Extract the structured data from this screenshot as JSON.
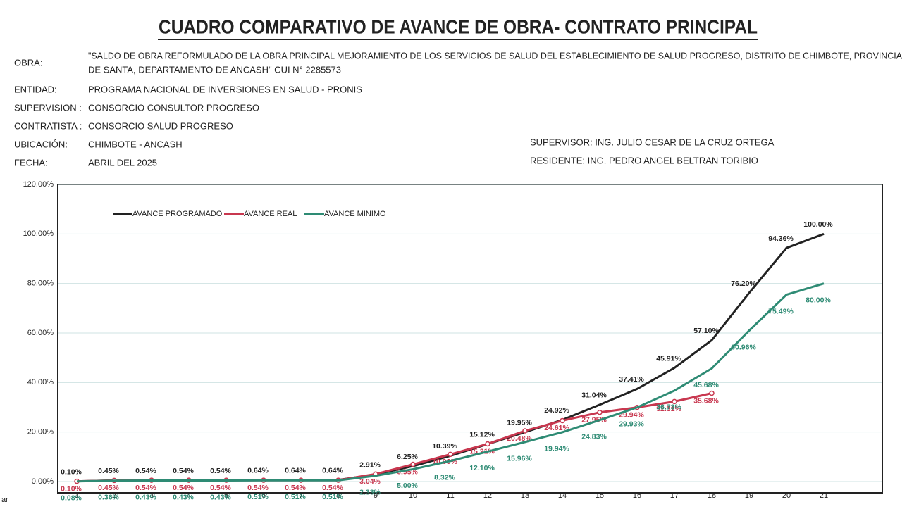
{
  "header": {
    "title": "CUADRO COMPARATIVO DE AVANCE DE OBRA- CONTRATO PRINCIPAL",
    "fields": [
      {
        "label": "OBRA:",
        "value": [
          "\"SALDO DE OBRA REFORMULADO DE LA OBRA PRINCIPAL MEJORAMIENTO DE LOS SERVICIOS DE SALUD DEL ESTABLECIMIENTO DE SALUD PROGRESO, DISTRITO DE CHIMBOTE, PROVINCIA",
          "DE SANTA, DEPARTAMENTO DE ANCASH\" CUI N° 2285573"
        ]
      },
      {
        "label": "ENTIDAD:",
        "value": [
          "PROGRAMA NACIONAL DE INVERSIONES EN SALUD - PRONIS"
        ]
      },
      {
        "label": "SUPERVISION :",
        "value": [
          "CONSORCIO CONSULTOR PROGRESO"
        ]
      },
      {
        "label": "CONTRATISTA :",
        "value": [
          "CONSORCIO SALUD PROGRESO"
        ]
      },
      {
        "label": "UBICACIÓN:",
        "value": [
          "CHIMBOTE - ANCASH"
        ]
      },
      {
        "label": "FECHA:",
        "value": [
          "ABRIL DEL 2025"
        ]
      }
    ],
    "supervisor": "SUPERVISOR: ING. JULIO CESAR DE LA CRUZ ORTEGA",
    "residente": "RESIDENTE: ING. PEDRO ANGEL BELTRAN TORIBIO",
    "stray_text": "ar"
  },
  "chart_data": {
    "type": "line",
    "categories": [
      "1",
      "2",
      "3",
      "4",
      "5",
      "6",
      "7",
      "8",
      "9",
      "10",
      "11",
      "12",
      "13",
      "14",
      "15",
      "16",
      "17",
      "18",
      "19",
      "20",
      "21"
    ],
    "ylim": [
      0,
      120
    ],
    "yticks": [
      {
        "value": 0,
        "label": "0.00%"
      },
      {
        "value": 20,
        "label": "20.00%"
      },
      {
        "value": 40,
        "label": "40.00%"
      },
      {
        "value": 60,
        "label": "60.00%"
      },
      {
        "value": 80,
        "label": "80.00%"
      },
      {
        "value": 100,
        "label": "100.00%"
      },
      {
        "value": 120,
        "label": "120.00%"
      }
    ],
    "grid": true,
    "legend": "top-left",
    "series": [
      {
        "name": "AVANCE PROGRAMADO",
        "color": "#222222",
        "values": [
          0.1,
          0.45,
          0.54,
          0.54,
          0.54,
          0.64,
          0.64,
          0.64,
          2.91,
          6.25,
          10.39,
          15.12,
          19.95,
          24.92,
          31.04,
          37.41,
          45.91,
          57.1,
          76.2,
          94.36,
          100.0
        ],
        "value_labels": [
          "0.10%",
          "0.45%",
          "0.54%",
          "0.54%",
          "0.54%",
          "0.64%",
          "0.64%",
          "0.64%",
          "2.91%",
          "6.25%",
          "10.39%",
          "15.12%",
          "19.95%",
          "24.92%",
          "31.04%",
          "37.41%",
          "45.91%",
          "57.10%",
          "76.20%",
          "94.36%",
          "100.00%"
        ]
      },
      {
        "name": "AVANCE REAL",
        "color": "#c8374f",
        "values": [
          0.1,
          0.45,
          0.54,
          0.54,
          0.54,
          0.54,
          0.54,
          0.54,
          3.04,
          6.95,
          10.98,
          15.21,
          20.48,
          24.61,
          27.95,
          29.94,
          32.31,
          35.68,
          null,
          null,
          null
        ],
        "value_labels": [
          "0.10%",
          "0.45%",
          "0.54%",
          "0.54%",
          "0.54%",
          "0.54%",
          "0.54%",
          "0.54%",
          "3.04%",
          "6.95%",
          "10.98%",
          "15.21%",
          "20.48%",
          "24.61%",
          "27.95%",
          "29.94%",
          "32.31%",
          "35.68%",
          null,
          null,
          null
        ]
      },
      {
        "name": "AVANCE MINIMO",
        "color": "#2e8b74",
        "values": [
          0.08,
          0.36,
          0.43,
          0.43,
          0.43,
          0.51,
          0.51,
          0.51,
          2.33,
          5.0,
          8.32,
          12.1,
          15.96,
          19.94,
          24.83,
          29.93,
          36.73,
          45.68,
          60.96,
          75.49,
          80.0
        ],
        "value_labels": [
          "0.08%",
          "0.36%",
          "0.43%",
          "0.43%",
          "0.43%",
          "0.51%",
          "0.51%",
          "0.51%",
          "2.33%",
          "5.00%",
          "8.32%",
          "12.10%",
          "15.96%",
          "19.94%",
          "24.83%",
          "29.93%",
          "36.73%",
          "45.68%",
          "60.96%",
          "75.49%",
          "80.00%"
        ]
      }
    ]
  }
}
